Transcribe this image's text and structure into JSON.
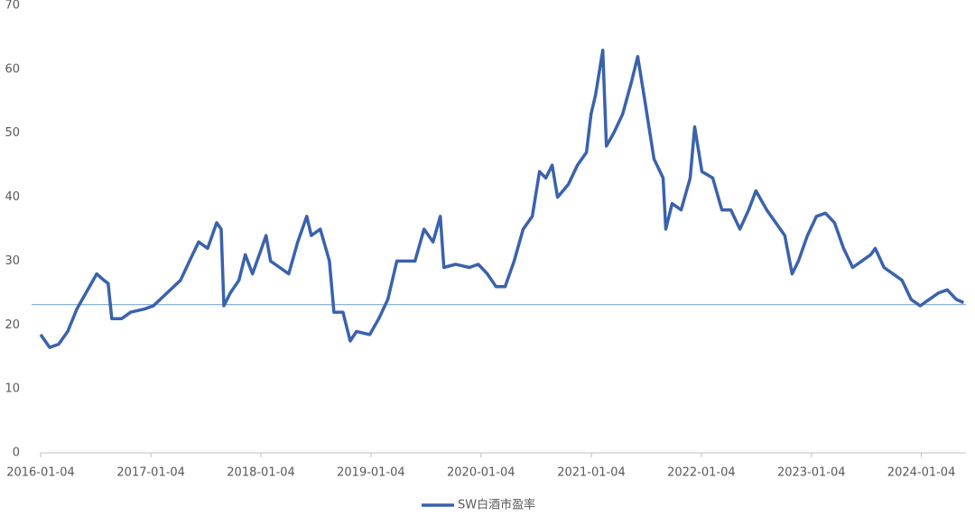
{
  "chart_data": {
    "type": "line",
    "x": [
      "2016-01-04",
      "2016-02-03",
      "2016-03-04",
      "2016-04-03",
      "2016-05-03",
      "2016-06-02",
      "2016-07-08",
      "2016-08-01",
      "2016-08-15",
      "2016-08-27",
      "2016-09-29",
      "2016-10-29",
      "2016-12-13",
      "2017-01-12",
      "2017-02-26",
      "2017-04-12",
      "2017-05-12",
      "2017-06-11",
      "2017-07-11",
      "2017-08-10",
      "2017-08-25",
      "2017-09-03",
      "2017-09-24",
      "2017-10-23",
      "2017-11-13",
      "2017-12-07",
      "2018-01-06",
      "2018-01-21",
      "2018-02-05",
      "2018-03-07",
      "2018-04-06",
      "2018-05-06",
      "2018-06-05",
      "2018-06-20",
      "2018-07-20",
      "2018-08-19",
      "2018-09-03",
      "2018-10-03",
      "2018-10-27",
      "2018-11-17",
      "2018-12-31",
      "2019-01-30",
      "2019-03-01",
      "2019-03-31",
      "2019-04-30",
      "2019-05-30",
      "2019-06-29",
      "2019-07-29",
      "2019-08-22",
      "2019-09-03",
      "2019-10-12",
      "2019-11-26",
      "2019-12-26",
      "2020-01-25",
      "2020-02-23",
      "2020-03-24",
      "2020-04-23",
      "2020-05-23",
      "2020-06-22",
      "2020-07-16",
      "2020-08-06",
      "2020-08-27",
      "2020-09-14",
      "2020-10-20",
      "2020-11-19",
      "2020-12-19",
      "2021-01-03",
      "2021-01-18",
      "2021-02-11",
      "2021-02-23",
      "2021-03-19",
      "2021-04-18",
      "2021-05-17",
      "2021-06-07",
      "2021-07-01",
      "2021-07-31",
      "2021-08-30",
      "2021-09-08",
      "2021-09-29",
      "2021-10-29",
      "2021-11-28",
      "2021-12-13",
      "2022-01-06",
      "2022-02-11",
      "2022-03-13",
      "2022-04-12",
      "2022-05-12",
      "2022-06-10",
      "2022-07-04",
      "2022-08-09",
      "2022-09-08",
      "2022-10-08",
      "2022-11-01",
      "2022-11-22",
      "2022-12-22",
      "2023-01-21",
      "2023-02-20",
      "2023-03-22",
      "2023-04-21",
      "2023-05-21",
      "2023-06-20",
      "2023-07-20",
      "2023-08-04",
      "2023-09-02",
      "2023-10-02",
      "2023-11-01",
      "2023-12-01",
      "2023-12-31",
      "2024-01-30",
      "2024-02-29",
      "2024-03-30",
      "2024-04-29",
      "2024-05-23"
    ],
    "series": [
      {
        "name": "SW白酒市盈率",
        "color": "#3a62ad",
        "values": [
          18.5,
          16.5,
          17,
          19,
          22.5,
          25,
          28,
          27,
          26.5,
          21,
          21,
          22,
          22.5,
          23,
          25,
          27,
          30,
          33,
          32,
          36,
          35,
          23,
          25,
          27,
          31,
          28,
          32,
          34,
          30,
          29,
          28,
          33,
          37,
          34,
          35,
          30,
          22,
          22,
          17.5,
          19,
          18.5,
          21,
          24,
          30,
          30,
          30,
          35,
          33,
          37,
          29,
          29.5,
          29,
          29.5,
          28,
          26,
          26,
          30,
          35,
          37,
          44,
          43,
          45,
          40,
          42,
          45,
          47,
          53,
          56,
          63,
          48,
          50,
          53,
          58,
          62,
          55,
          46,
          43,
          35,
          39,
          38,
          43,
          51,
          44,
          43,
          38,
          38,
          35,
          38,
          41,
          38,
          36,
          34,
          28,
          30,
          34,
          37,
          37.5,
          36,
          32,
          29,
          30,
          31,
          32,
          29,
          28,
          27,
          24,
          23,
          24,
          25,
          25.5,
          24,
          23.5
        ]
      }
    ],
    "reference_line": {
      "value": 23.2,
      "color": "#8db3d8"
    },
    "xlim": [
      "2016-01-04",
      "2024-05-31"
    ],
    "xticks": [
      "2016-01-04",
      "2017-01-04",
      "2018-01-04",
      "2019-01-04",
      "2020-01-04",
      "2021-01-04",
      "2022-01-04",
      "2023-01-04",
      "2024-01-04"
    ],
    "ylim": [
      0,
      70
    ],
    "yticks": [
      0,
      10,
      20,
      30,
      40,
      50,
      60,
      70
    ],
    "grid": false,
    "legend": "bottom"
  }
}
